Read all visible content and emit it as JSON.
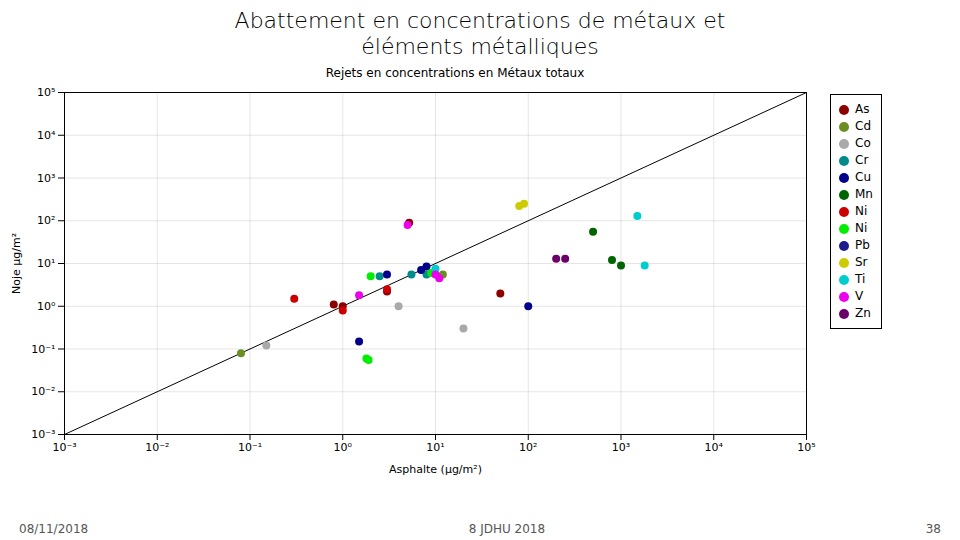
{
  "chart_data": {
    "type": "scatter",
    "title": "Abattement en concentrations de métaux et\néléments métalliques",
    "subtitle": "Rejets en concentrations en Métaux totaux",
    "x_label": "Asphalte (µg/m²)",
    "y_label": "Noje µg/m²",
    "annotations": [
      "08/11/2018",
      "8 JDHU 2018",
      "38"
    ],
    "log": true,
    "grid": true,
    "legend": "upper right",
    "xlim": [
      0.001,
      100000
    ],
    "ylim": [
      0.001,
      100000
    ],
    "xticks": [
      {
        "value": 0.001,
        "label": "10⁻³"
      },
      {
        "value": 0.01,
        "label": "10⁻²"
      },
      {
        "value": 0.1,
        "label": "10⁻¹"
      },
      {
        "value": 1,
        "label": "10⁰"
      },
      {
        "value": 10,
        "label": "10¹"
      },
      {
        "value": 100,
        "label": "10²"
      },
      {
        "value": 1000,
        "label": "10³"
      },
      {
        "value": 10000,
        "label": "10⁴"
      },
      {
        "value": 100000,
        "label": "10⁵"
      }
    ],
    "yticks": [
      {
        "value": 0.001,
        "label": "10⁻³"
      },
      {
        "value": 0.01,
        "label": "10⁻²"
      },
      {
        "value": 0.1,
        "label": "10⁻¹"
      },
      {
        "value": 1,
        "label": "10⁰"
      },
      {
        "value": 10,
        "label": "10¹"
      },
      {
        "value": 100,
        "label": "10²"
      },
      {
        "value": 1000,
        "label": "10³"
      },
      {
        "value": 10000,
        "label": "10⁴"
      },
      {
        "value": 100000,
        "label": "10⁵"
      }
    ],
    "series": [
      {
        "name": "As",
        "color": "#8B0000",
        "x": [
          0.8,
          1.0,
          3.0,
          5.2,
          50.0
        ],
        "values": [
          1.1,
          1.0,
          2.2,
          90.0,
          2.0
        ]
      },
      {
        "name": "Cd",
        "color": "#6B8E23",
        "x": [
          0.08,
          12.0
        ],
        "values": [
          0.08,
          5.5
        ]
      },
      {
        "name": "Co",
        "color": "#A9A9A9",
        "x": [
          0.15,
          4.0,
          20.0
        ],
        "values": [
          0.12,
          1.0,
          0.3
        ]
      },
      {
        "name": "Cr",
        "color": "#008B8B",
        "x": [
          2.5,
          5.5,
          8.0
        ],
        "values": [
          5.0,
          5.5,
          5.5
        ]
      },
      {
        "name": "Cu",
        "color": "#00008B",
        "x": [
          1.5,
          3.0,
          7.0,
          8.0,
          100.0
        ],
        "values": [
          0.15,
          5.5,
          7.0,
          8.5,
          1.0
        ]
      },
      {
        "name": "Mn",
        "color": "#006400",
        "x": [
          500.0,
          800.0,
          1000.0
        ],
        "values": [
          55.0,
          12.0,
          9.0
        ]
      },
      {
        "name": "Ni",
        "color": "#CC0000",
        "x": [
          0.3,
          1.0,
          3.0
        ],
        "values": [
          1.5,
          0.8,
          2.5
        ]
      },
      {
        "name": "Ni",
        "color": "#00EE00",
        "x": [
          1.8,
          1.9,
          2.0,
          9.0
        ],
        "values": [
          0.06,
          0.055,
          5.0,
          6.0
        ]
      },
      {
        "name": "Pb",
        "color": "#1C1C8C",
        "x": [],
        "values": []
      },
      {
        "name": "Sr",
        "color": "#CCCC00",
        "x": [
          80.0,
          90.0
        ],
        "values": [
          220.0,
          250.0
        ]
      },
      {
        "name": "Ti",
        "color": "#00CDCD",
        "x": [
          10.0,
          1500.0,
          1800.0
        ],
        "values": [
          7.5,
          130.0,
          9.0
        ]
      },
      {
        "name": "V",
        "color": "#EE00EE",
        "x": [
          1.5,
          5.0,
          10.0,
          11.0
        ],
        "values": [
          1.8,
          80.0,
          5.5,
          4.5
        ]
      },
      {
        "name": "Zn",
        "color": "#6B006B",
        "x": [
          200.0,
          250.0
        ],
        "values": [
          13.0,
          13.0
        ]
      }
    ]
  }
}
